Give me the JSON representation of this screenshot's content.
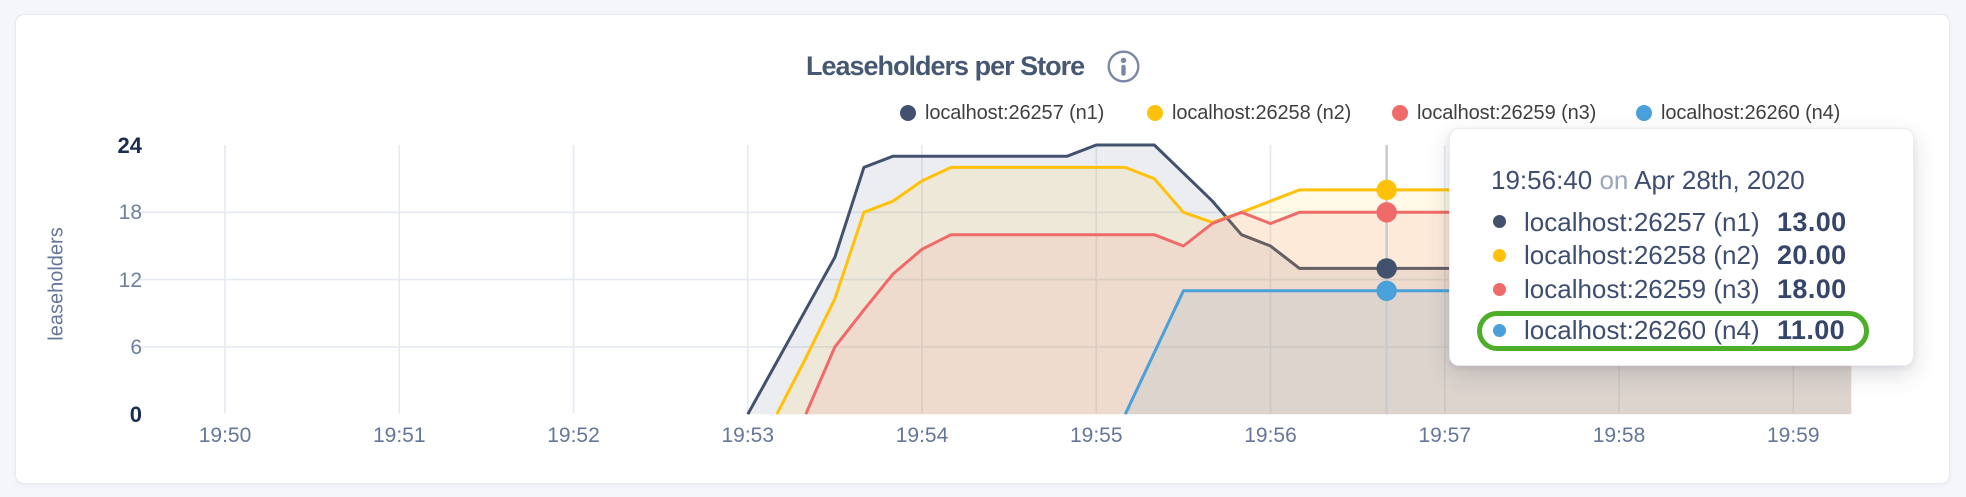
{
  "title": {
    "text": "Leaseholders per Store"
  },
  "chart_data": {
    "type": "area",
    "title": "Leaseholders per Store",
    "xlabel": "",
    "ylabel": "leaseholders",
    "x_ticks": [
      "19:50",
      "19:51",
      "19:52",
      "19:53",
      "19:54",
      "19:55",
      "19:56",
      "19:57",
      "19:58",
      "19:59"
    ],
    "y_ticks": [
      0,
      6,
      12,
      18,
      24
    ],
    "x_domain": [
      "19:49:30",
      "19:59:20"
    ],
    "ylim": [
      0,
      24
    ],
    "grid": true,
    "legend_position": "top-right",
    "fill_opacity": 0.1,
    "series": [
      {
        "name": "localhost:26257 (n1)",
        "color": "#42526e",
        "points": [
          [
            "19:53:00",
            0
          ],
          [
            "19:53:30",
            14
          ],
          [
            "19:53:40",
            22
          ],
          [
            "19:53:50",
            23
          ],
          [
            "19:54:50",
            23
          ],
          [
            "19:55:00",
            24
          ],
          [
            "19:55:20",
            24
          ],
          [
            "19:55:30",
            21.5
          ],
          [
            "19:55:40",
            19
          ],
          [
            "19:55:50",
            16
          ],
          [
            "19:56:00",
            15
          ],
          [
            "19:56:10",
            13
          ],
          [
            "19:59:20",
            13
          ]
        ]
      },
      {
        "name": "localhost:26258 (n2)",
        "color": "#ffc109",
        "points": [
          [
            "19:53:10",
            0
          ],
          [
            "19:53:20",
            5
          ],
          [
            "19:53:30",
            10.3
          ],
          [
            "19:53:40",
            18
          ],
          [
            "19:53:50",
            19
          ],
          [
            "19:54:00",
            20.8
          ],
          [
            "19:54:10",
            22
          ],
          [
            "19:55:10",
            22
          ],
          [
            "19:55:20",
            21
          ],
          [
            "19:55:30",
            18
          ],
          [
            "19:55:40",
            17.1
          ],
          [
            "19:55:50",
            18
          ],
          [
            "19:56:00",
            19
          ],
          [
            "19:56:10",
            20
          ],
          [
            "19:59:20",
            20
          ]
        ]
      },
      {
        "name": "localhost:26259 (n3)",
        "color": "#f16a6a",
        "points": [
          [
            "19:53:20",
            0
          ],
          [
            "19:53:30",
            6
          ],
          [
            "19:53:40",
            9.3
          ],
          [
            "19:53:50",
            12.5
          ],
          [
            "19:54:00",
            14.7
          ],
          [
            "19:54:10",
            16
          ],
          [
            "19:55:20",
            16
          ],
          [
            "19:55:30",
            15
          ],
          [
            "19:55:40",
            17
          ],
          [
            "19:55:50",
            18
          ],
          [
            "19:56:00",
            17
          ],
          [
            "19:56:10",
            18
          ],
          [
            "19:59:20",
            18
          ]
        ]
      },
      {
        "name": "localhost:26260 (n4)",
        "color": "#4aa0d8",
        "points": [
          [
            "19:55:10",
            0
          ],
          [
            "19:55:30",
            11
          ],
          [
            "19:59:20",
            11
          ]
        ]
      }
    ],
    "hover": {
      "time": "19:56:40",
      "values": [
        13,
        20,
        18,
        11
      ]
    }
  },
  "legend": {
    "items": [
      {
        "label": "localhost:26257 (n1)",
        "color": "#42526e"
      },
      {
        "label": "localhost:26258 (n2)",
        "color": "#ffc109"
      },
      {
        "label": "localhost:26259 (n3)",
        "color": "#f16a6a"
      },
      {
        "label": "localhost:26260 (n4)",
        "color": "#4aa0d8"
      }
    ]
  },
  "tooltip": {
    "time": "19:56:40",
    "separator": "on",
    "date": "Apr 28th, 2020",
    "rows": [
      {
        "label": "localhost:26257 (n1)",
        "value": "13.00",
        "color": "#42526e"
      },
      {
        "label": "localhost:26258 (n2)",
        "value": "20.00",
        "color": "#ffc109"
      },
      {
        "label": "localhost:26259 (n3)",
        "value": "18.00",
        "color": "#f16a6a"
      },
      {
        "label": "localhost:26260 (n4)",
        "value": "11.00",
        "color": "#4aa0d8"
      }
    ],
    "highlighted_row": 3,
    "highlight_color": "#4dae29"
  }
}
